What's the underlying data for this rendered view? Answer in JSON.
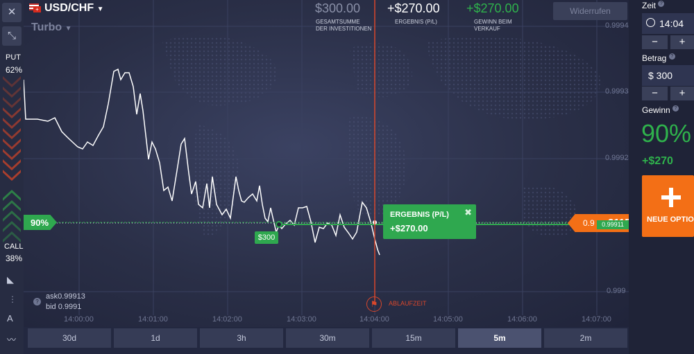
{
  "header": {
    "pair": "USD/CHF",
    "mode": "Turbo",
    "investment_value": "$300.00",
    "investment_label_1": "GESAMTSUMME",
    "investment_label_2": "DER INVESTITIONEN",
    "result_value": "+$270.00",
    "result_label": "ERGEBNIS (P/L)",
    "sell_value": "+$270.00",
    "sell_label_1": "GEWINN BEIM",
    "sell_label_2": "VERKAUF",
    "cancel_button": "Widerrufen"
  },
  "sidebar": {
    "put_label": "PUT",
    "put_percent": "62%",
    "call_label": "CALL",
    "call_percent": "38%"
  },
  "chart": {
    "price_ticks": [
      "0.9994",
      "0.9993",
      "0.9992",
      "0.999"
    ],
    "time_ticks": [
      "14:00:00",
      "14:01:00",
      "14:02:00",
      "14:03:00",
      "14:04:00",
      "14:05:00",
      "14:06:00",
      "14:07:00"
    ],
    "payout_flag": "90%",
    "entry_tag": "$300",
    "current_price_left": "0.9",
    "current_price_right": "2115",
    "current_price_tag": "0.99911",
    "expiry_label": "ABLAUFZEIT",
    "ask_label": "ask",
    "ask_value": "0.99913",
    "bid_label": "bid",
    "bid_value": "0.9991",
    "result_popup_title": "ERGEBNIS (P/L)",
    "result_popup_value": "+$270.00",
    "line_color": "#ffffff",
    "entry_color": "#2fa84f",
    "expiry_color": "#d9472b"
  },
  "timeframes": {
    "items": [
      "30d",
      "1d",
      "3h",
      "30m",
      "15m",
      "5m",
      "2m"
    ],
    "active": "5m"
  },
  "panel": {
    "time_label": "Zeit",
    "time_value": "14:04",
    "amount_label": "Betrag",
    "amount_value": "$ 300",
    "minus": "−",
    "plus": "+",
    "profit_label": "Gewinn",
    "profit_percent": "90%",
    "profit_amount": "+$270",
    "new_option_label": "NEUE OPTION",
    "new_option_color": "#f36f16",
    "profit_color": "#2fb24c"
  }
}
